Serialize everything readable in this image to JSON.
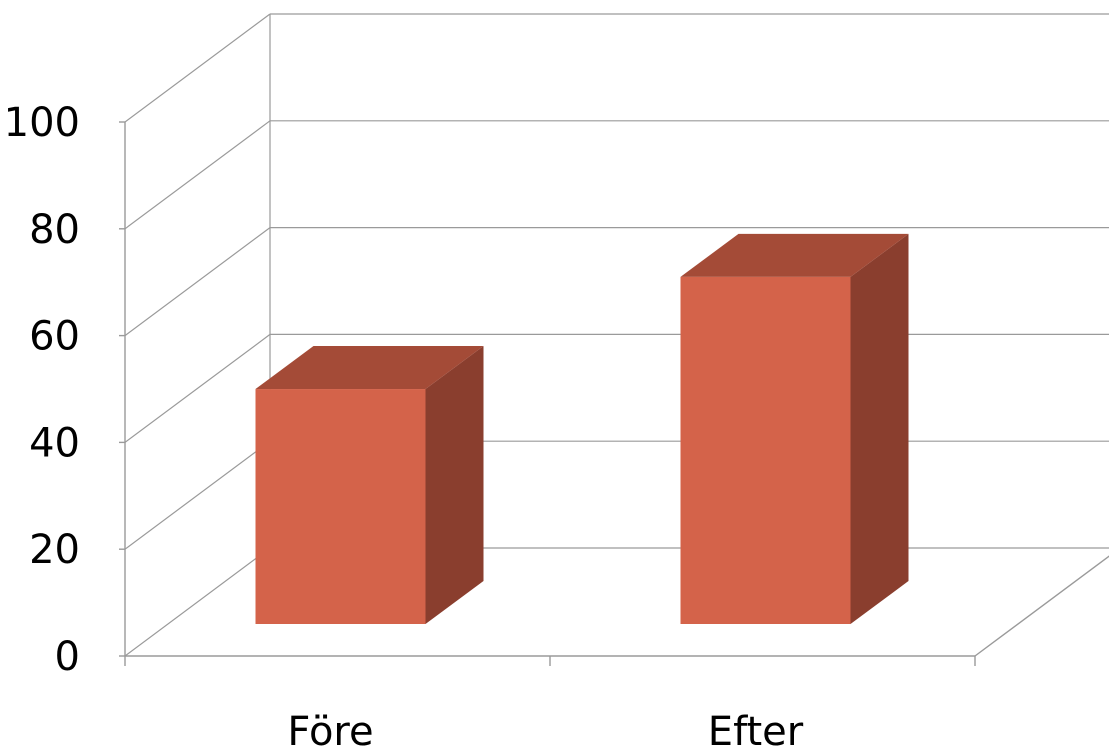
{
  "chart_data": {
    "type": "bar",
    "style": "3d-column",
    "categories": [
      "Före",
      "Efter"
    ],
    "values": [
      44,
      65
    ],
    "ylim": [
      0,
      100
    ],
    "yticks": [
      0,
      20,
      40,
      60,
      80,
      100
    ],
    "ytick_labels": [
      "0",
      "20",
      "40",
      "60",
      "80",
      "100"
    ],
    "grid": true,
    "legend": "none",
    "colors": {
      "bar_front": "#D4634A",
      "bar_top": "#A44B37",
      "bar_side": "#8A3E2E",
      "grid": "#9A9A9A"
    }
  }
}
